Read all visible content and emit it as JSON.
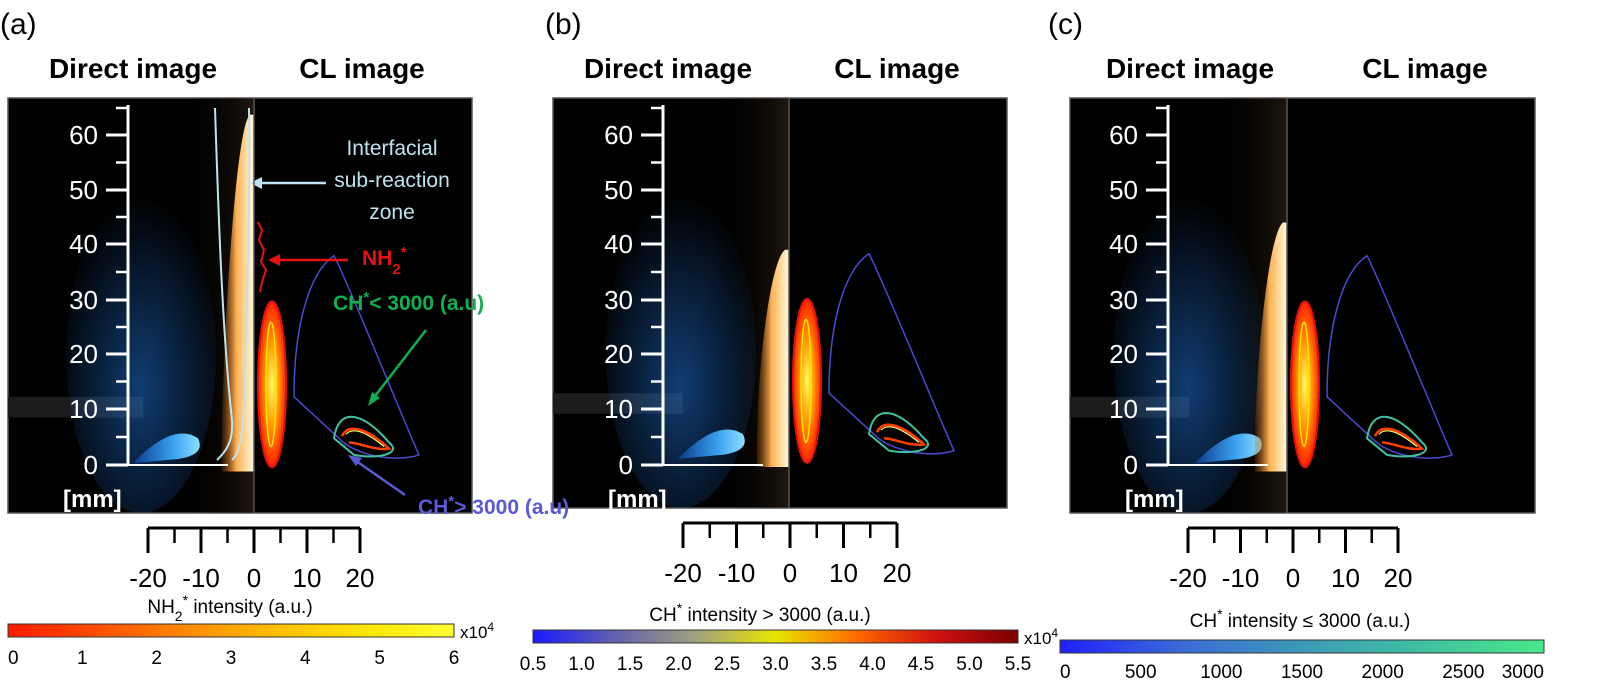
{
  "panels": [
    {
      "label": "(a)",
      "left_title": "Direct image",
      "right_title": "CL image",
      "y_ticks": [
        "60",
        "50",
        "40",
        "30",
        "20",
        "10",
        "0"
      ],
      "y_unit": "[mm]",
      "x_ticks": [
        "-20",
        "-10",
        "0",
        "10",
        "20"
      ],
      "colorbar": {
        "title_main": "NH",
        "title_sub": "2",
        "title_sup": "*",
        "title_rest": " intensity (a.u.)",
        "ticks": [
          "0",
          "1",
          "2",
          "3",
          "4",
          "5",
          "6"
        ],
        "multiplier": "x10",
        "multiplier_exp": "4",
        "colors": [
          "#ff1a00",
          "#ff4d00",
          "#ff8a00",
          "#ffbf00",
          "#ffe600",
          "#ffff33"
        ]
      }
    },
    {
      "label": "(b)",
      "left_title": "Direct image",
      "right_title": "CL image",
      "y_ticks": [
        "60",
        "50",
        "40",
        "30",
        "20",
        "10",
        "0"
      ],
      "y_unit": "[mm]",
      "x_ticks": [
        "-20",
        "-10",
        "0",
        "10",
        "20"
      ],
      "colorbar": {
        "title_main": "CH",
        "title_sup": "*",
        "title_rest": " intensity > 3000 (a.u.)",
        "ticks": [
          "0.5",
          "1.0",
          "1.5",
          "2.0",
          "2.5",
          "3.0",
          "3.5",
          "4.0",
          "4.5",
          "5.0",
          "5.5"
        ],
        "multiplier": "x10",
        "multiplier_exp": "4",
        "colors": [
          "#1a1aff",
          "#6060b0",
          "#a0a080",
          "#e6e600",
          "#ff6a00",
          "#d01010",
          "#7a0000"
        ]
      }
    },
    {
      "label": "(c)",
      "left_title": "Direct image",
      "right_title": "CL image",
      "y_ticks": [
        "60",
        "50",
        "40",
        "30",
        "20",
        "10",
        "0"
      ],
      "y_unit": "[mm]",
      "x_ticks": [
        "-20",
        "-10",
        "0",
        "10",
        "20"
      ],
      "colorbar": {
        "title_main": "CH",
        "title_sup": "*",
        "title_rest": " intensity ≤ 3000 (a.u.)",
        "ticks": [
          "0",
          "500",
          "1000",
          "1500",
          "2000",
          "2500",
          "3000"
        ],
        "colors": [
          "#2020ff",
          "#3a6ad6",
          "#3c9ab8",
          "#3fc0a0",
          "#4ae88a"
        ]
      }
    }
  ],
  "annotations": {
    "interfacial": [
      "Interfacial",
      "sub-reaction",
      "zone"
    ],
    "nh2_main": "NH",
    "nh2_sub": "2",
    "nh2_sup": "*",
    "ch_low_main": "CH",
    "ch_low_sup": "*",
    "ch_low_rest": "< 3000 (a.u)",
    "ch_high_main": "CH",
    "ch_high_sup": "*",
    "ch_high_rest": "> 3000 (a.u)"
  },
  "colors": {
    "interfacial": "#bfe3ee",
    "nh2": "#e81010",
    "ch_low": "#10b050",
    "ch_high": "#5a5ad8",
    "photo_bg": "#000000",
    "flame_blue": "#2d8fe0",
    "flame_orange": "#ffb050"
  }
}
